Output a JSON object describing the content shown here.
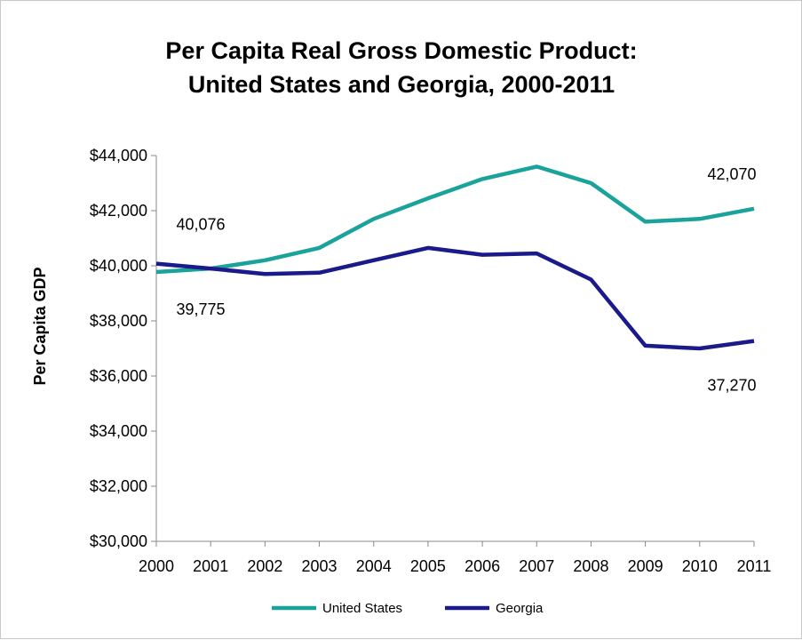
{
  "chart_data": {
    "type": "line",
    "title": "Per Capita Real Gross Domestic Product:",
    "subtitle": "United States and Georgia, 2000-2011",
    "xlabel": "",
    "ylabel": "Per Capita GDP",
    "categories": [
      "2000",
      "2001",
      "2002",
      "2003",
      "2004",
      "2005",
      "2006",
      "2007",
      "2008",
      "2009",
      "2010",
      "2011"
    ],
    "ylim": [
      30000,
      44000
    ],
    "yticks": [
      30000,
      32000,
      34000,
      36000,
      38000,
      40000,
      42000,
      44000
    ],
    "ytick_labels": [
      "$30,000",
      "$32,000",
      "$34,000",
      "$36,000",
      "$38,000",
      "$40,000",
      "$42,000",
      "$44,000"
    ],
    "grid": false,
    "legend_position": "bottom",
    "series": [
      {
        "name": "United States",
        "color": "#1aa39a",
        "values": [
          39775,
          39900,
          40200,
          40650,
          41700,
          42450,
          43150,
          43600,
          43000,
          41600,
          41700,
          42070
        ]
      },
      {
        "name": "Georgia",
        "color": "#1a1a8a",
        "values": [
          40076,
          39900,
          39700,
          39750,
          40200,
          40650,
          40400,
          40450,
          39500,
          37100,
          37000,
          37270
        ]
      }
    ],
    "data_labels": [
      {
        "series": "Georgia",
        "index": 0,
        "text": "40,076"
      },
      {
        "series": "United States",
        "index": 0,
        "text": "39,775"
      },
      {
        "series": "United States",
        "index": 11,
        "text": "42,070"
      },
      {
        "series": "Georgia",
        "index": 11,
        "text": "37,270"
      }
    ]
  }
}
